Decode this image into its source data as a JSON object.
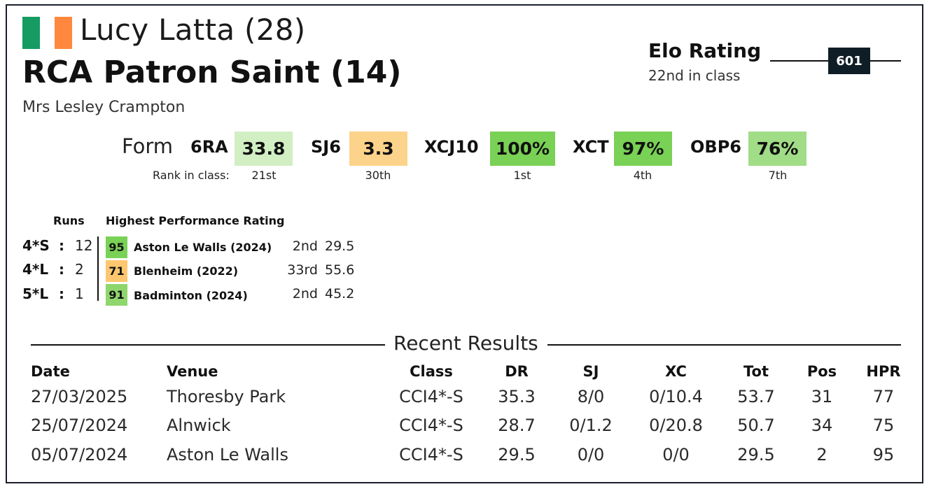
{
  "flag": {
    "colors": [
      "#169b62",
      "#ffffff",
      "#ff883e"
    ]
  },
  "rider": {
    "name": "Lucy Latta (28)"
  },
  "horse": {
    "name": "RCA Patron Saint (14)"
  },
  "owner": {
    "name": "Mrs Lesley Crampton"
  },
  "elo": {
    "title": "Elo Rating",
    "class_rank": "22nd in class",
    "value": "601"
  },
  "form": {
    "label": "Form",
    "rank_label": "Rank in class:",
    "metrics": [
      {
        "code": "6RA",
        "value": "33.8",
        "rank": "21st",
        "color": "#d2efc4"
      },
      {
        "code": "SJ6",
        "value": "3.3",
        "rank": "30th",
        "color": "#fcd38a"
      },
      {
        "code": "XCJ10",
        "value": "100%",
        "rank": "1st",
        "color": "#79d155"
      },
      {
        "code": "XCT",
        "value": "97%",
        "rank": "4th",
        "color": "#79d155"
      },
      {
        "code": "OBP6",
        "value": "76%",
        "rank": "7th",
        "color": "#a1dc86"
      }
    ]
  },
  "runs": {
    "runs_header": "Runs",
    "hpr_header": "Highest Performance Rating",
    "rows": [
      {
        "level": "4*S",
        "colon": ":",
        "count": "12",
        "hpr": "95",
        "hpr_color": "#79d155",
        "event": "Aston Le Walls  (2024)",
        "place": "2nd",
        "score": "29.5"
      },
      {
        "level": "4*L",
        "colon": ":",
        "count": "2",
        "hpr": "71",
        "hpr_color": "#fcc76e",
        "event": "Blenheim  (2022)",
        "place": "33rd",
        "score": "55.6"
      },
      {
        "level": "5*L",
        "colon": ":",
        "count": "1",
        "hpr": "91",
        "hpr_color": "#8fd66c",
        "event": "Badminton  (2024)",
        "place": "2nd",
        "score": "45.2"
      }
    ]
  },
  "recent": {
    "title": "Recent Results",
    "columns": {
      "date": "Date",
      "venue": "Venue",
      "class": "Class",
      "dr": "DR",
      "sj": "SJ",
      "xc": "XC",
      "tot": "Tot",
      "pos": "Pos",
      "hpr": "HPR"
    },
    "rows": [
      {
        "date": "27/03/2025",
        "venue": "Thoresby Park",
        "class": "CCI4*-S",
        "dr": "35.3",
        "sj": "8/0",
        "xc": "0/10.4",
        "tot": "53.7",
        "pos": "31",
        "hpr": "77"
      },
      {
        "date": "25/07/2024",
        "venue": "Alnwick",
        "class": "CCI4*-S",
        "dr": "28.7",
        "sj": "0/1.2",
        "xc": "0/20.8",
        "tot": "50.7",
        "pos": "34",
        "hpr": "75"
      },
      {
        "date": "05/07/2024",
        "venue": "Aston Le Walls",
        "class": "CCI4*-S",
        "dr": "29.5",
        "sj": "0/0",
        "xc": "0/0",
        "tot": "29.5",
        "pos": "2",
        "hpr": "95"
      }
    ]
  }
}
